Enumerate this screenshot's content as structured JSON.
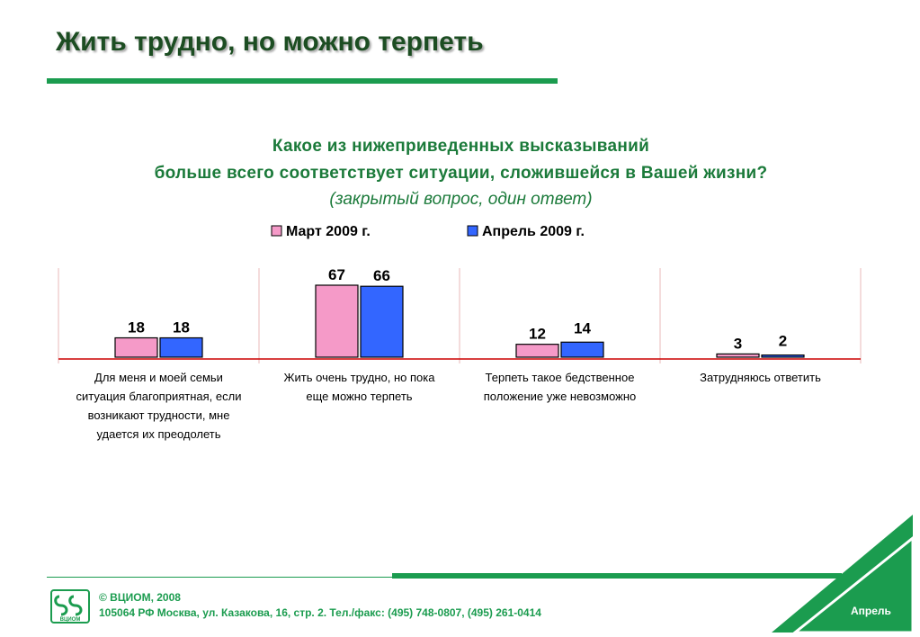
{
  "page": {
    "title": "Жить трудно, но можно терпеть",
    "question_line1": "Какое из нижеприведенных высказываний",
    "question_line2": "больше всего соответствует ситуации, сложившейся в Вашей жизни?",
    "question_note": "(закрытый вопрос, один ответ)",
    "footer_copyright": "© ВЦИОМ, 2008",
    "footer_address": "105064 РФ Москва, ул. Казакова, 16, стр. 2.  Тел./факс: (495) 748-0807, (495) 261-0414",
    "month_label": "Апрель",
    "logo_text": "ВЦИОМ"
  },
  "colors": {
    "march": "#f59ac8",
    "april": "#3366ff",
    "accent_green": "#1b9c4f",
    "title_green": "#1c4d22",
    "axis_red": "#cc0000"
  },
  "chart_data": {
    "type": "bar",
    "categories": [
      [
        "Для меня и моей семьи",
        "ситуация благоприятная, если",
        "возникают трудности, мне",
        "удается их преодолеть"
      ],
      [
        "Жить очень трудно, но пока",
        "еще можно терпеть"
      ],
      [
        "Терпеть такое бедственное",
        "положение уже невозможно"
      ],
      [
        "Затрудняюсь ответить"
      ]
    ],
    "series": [
      {
        "name": "Март 2009 г.",
        "values": [
          18,
          67,
          12,
          3
        ]
      },
      {
        "name": "Апрель 2009 г.",
        "values": [
          18,
          66,
          14,
          2
        ]
      }
    ],
    "ylim": [
      0,
      70
    ],
    "legend": "top",
    "grid": false
  }
}
